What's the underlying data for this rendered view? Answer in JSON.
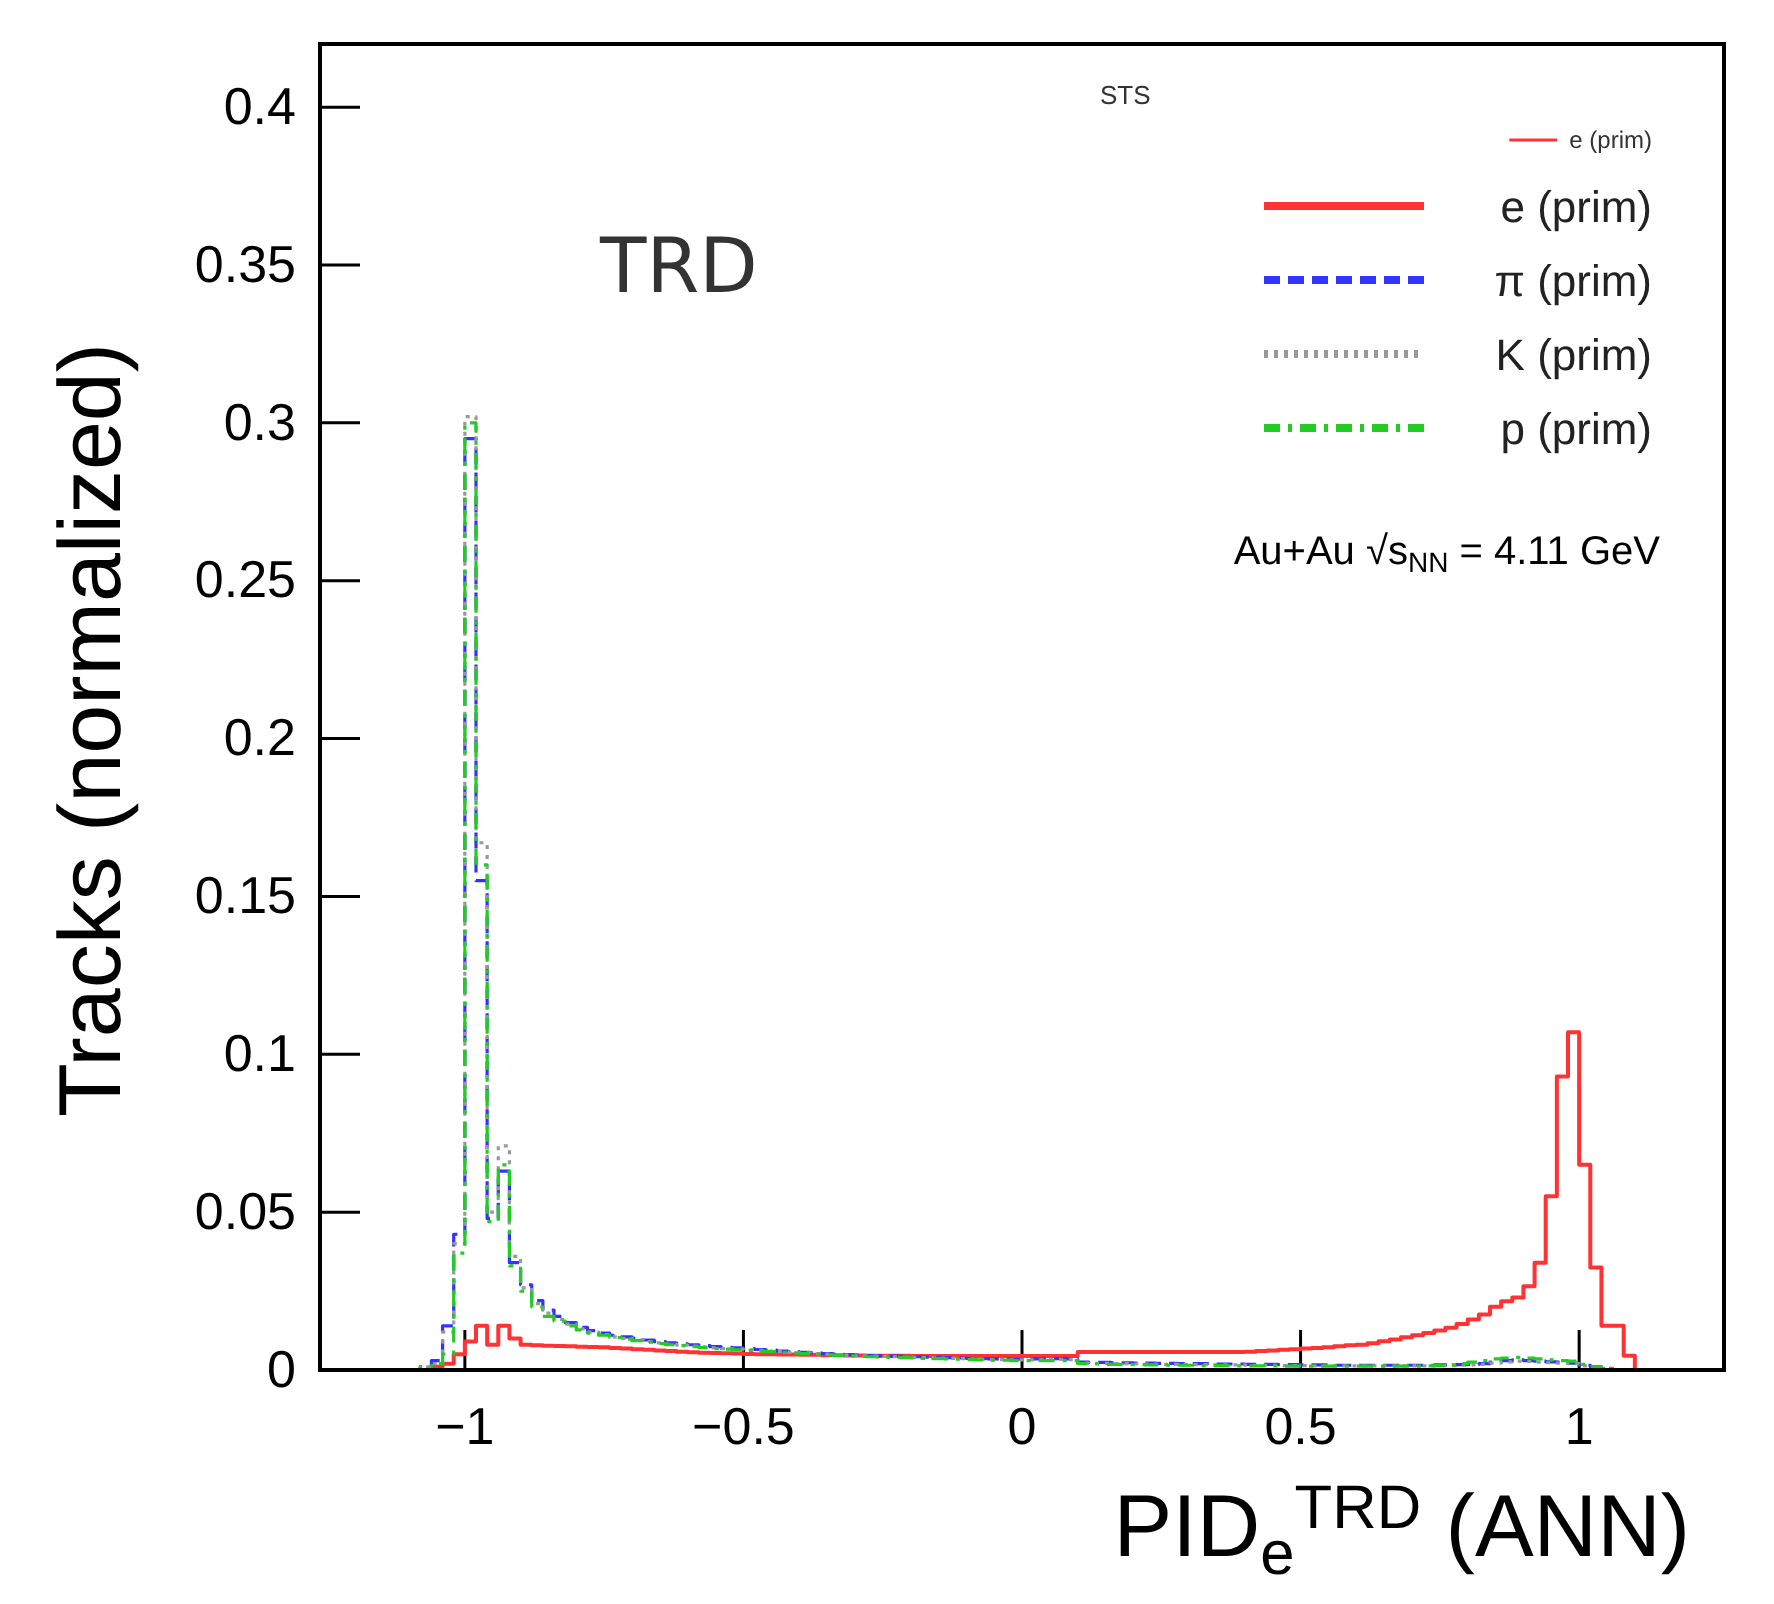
{
  "chart_data": {
    "type": "histogram",
    "xlabel": "PID$_{e}$$^{TRD}$ (ANN)",
    "ylabel": "Tracks (normalized)",
    "annotations": [
      "TRD",
      "STS",
      "e (prim)",
      "Au+Au √s$_{NN}$ = 4.11 GeV"
    ],
    "xlim": [
      -1.26,
      1.26
    ],
    "ylim": [
      0,
      0.42
    ],
    "xticks": [
      {
        "value": -1,
        "label": "−1"
      },
      {
        "value": -0.5,
        "label": "−0.5"
      },
      0,
      0.5,
      1
    ],
    "yticks": [
      0,
      0.05,
      0.1,
      0.15,
      0.2,
      0.25,
      0.3,
      0.35,
      0.4
    ],
    "legend": "top right",
    "grid": false,
    "bins": [
      -1.1,
      -1.08,
      -1.06,
      -1.04,
      -1.02,
      -1,
      -0.98,
      -0.96,
      -0.94,
      -0.92,
      -0.9,
      -0.88,
      -0.86,
      -0.84,
      -0.82,
      -0.8,
      -0.78,
      -0.76,
      -0.74,
      -0.72,
      -0.7,
      -0.68,
      -0.66,
      -0.64,
      -0.62,
      -0.6,
      -0.58,
      -0.56,
      -0.54,
      -0.52,
      -0.5,
      -0.48,
      -0.46,
      -0.44,
      -0.42,
      -0.4,
      -0.38,
      -0.36,
      -0.34,
      -0.32,
      -0.3,
      -0.28,
      -0.26,
      -0.24,
      -0.22,
      -0.2,
      -0.18,
      -0.16,
      -0.14,
      -0.12,
      -0.1,
      -0.08,
      -0.06,
      -0.04,
      -0.02,
      0,
      0.02,
      0.04,
      0.06,
      0.08,
      0.1,
      0.12,
      0.14,
      0.16,
      0.18,
      0.2,
      0.22,
      0.24,
      0.26,
      0.28,
      0.3,
      0.32,
      0.34,
      0.36,
      0.38,
      0.4,
      0.42,
      0.44,
      0.46,
      0.48,
      0.5,
      0.52,
      0.54,
      0.56,
      0.58,
      0.6,
      0.62,
      0.64,
      0.66,
      0.68,
      0.7,
      0.72,
      0.74,
      0.76,
      0.78,
      0.8,
      0.82,
      0.84,
      0.86,
      0.88,
      0.9,
      0.92,
      0.94,
      0.96,
      0.98,
      1,
      1.02,
      1.04,
      1.06,
      1.08,
      1.1
    ],
    "series": [
      {
        "name": "e (prim)",
        "color": "#ff3333",
        "line_style": "solid",
        "values": [
          0,
          0,
          0.001,
          0.002,
          0.005,
          0.009,
          0.014,
          0.008,
          0.014,
          0.01,
          0.008,
          0.0078,
          0.0077,
          0.0076,
          0.0075,
          0.0074,
          0.0073,
          0.0072,
          0.007,
          0.0068,
          0.0066,
          0.0064,
          0.0062,
          0.006,
          0.0058,
          0.0056,
          0.0055,
          0.0054,
          0.0053,
          0.0052,
          0.0051,
          0.005,
          0.005,
          0.0049,
          0.0049,
          0.0048,
          0.0048,
          0.0047,
          0.0047,
          0.0046,
          0.0046,
          0.0045,
          0.0045,
          0.0045,
          0.0045,
          0.0044,
          0.0044,
          0.0044,
          0.0044,
          0.0044,
          0.0044,
          0.0044,
          0.0044,
          0.0044,
          0.0044,
          0.0044,
          0.0044,
          0.0044,
          0.0044,
          0.0044,
          0.0057,
          0.0057,
          0.0057,
          0.0057,
          0.0057,
          0.0057,
          0.0057,
          0.0057,
          0.0057,
          0.0057,
          0.0057,
          0.0057,
          0.0057,
          0.0057,
          0.0057,
          0.0058,
          0.006,
          0.0062,
          0.0064,
          0.0066,
          0.0068,
          0.007,
          0.0072,
          0.0075,
          0.0078,
          0.008,
          0.0085,
          0.0091,
          0.0097,
          0.0104,
          0.011,
          0.0117,
          0.0125,
          0.0134,
          0.0146,
          0.016,
          0.0176,
          0.02,
          0.0218,
          0.023,
          0.0265,
          0.034,
          0.055,
          0.093,
          0.107,
          0.065,
          0.0325,
          0.014,
          0.014,
          0.0045
        ]
      },
      {
        "name": "π (prim)",
        "color": "#3333ff",
        "line_style": "dashed",
        "values": [
          0,
          0.001,
          0.003,
          0.014,
          0.043,
          0.295,
          0.155,
          0.048,
          0.063,
          0.034,
          0.027,
          0.022,
          0.019,
          0.017,
          0.015,
          0.0135,
          0.0125,
          0.0117,
          0.011,
          0.0105,
          0.01,
          0.0095,
          0.009,
          0.0086,
          0.0083,
          0.008,
          0.0077,
          0.0074,
          0.0072,
          0.007,
          0.0068,
          0.0065,
          0.0063,
          0.006,
          0.0058,
          0.0056,
          0.0054,
          0.0052,
          0.005,
          0.0049,
          0.0047,
          0.0046,
          0.0045,
          0.0044,
          0.0043,
          0.0042,
          0.0041,
          0.004,
          0.0039,
          0.0038,
          0.0037,
          0.0036,
          0.0035,
          0.0035,
          0.0034,
          0.0034,
          0.0035,
          0.0036,
          0.0036,
          0.0035,
          0.0025,
          0.0024,
          0.0024,
          0.0023,
          0.0023,
          0.0022,
          0.0022,
          0.0021,
          0.0021,
          0.002,
          0.002,
          0.002,
          0.0019,
          0.0019,
          0.0019,
          0.0018,
          0.0018,
          0.0018,
          0.0017,
          0.0017,
          0.0016,
          0.0016,
          0.0016,
          0.0015,
          0.0015,
          0.0015,
          0.0015,
          0.0015,
          0.0015,
          0.0015,
          0.0015,
          0.0015,
          0.0016,
          0.0016,
          0.0017,
          0.0018,
          0.002,
          0.0025,
          0.003,
          0.0032,
          0.003,
          0.0028,
          0.0026,
          0.0025,
          0.0022,
          0.0015,
          0.001,
          0.0005,
          0,
          0
        ]
      },
      {
        "name": "K (prim)",
        "color": "#999999",
        "line_style": "dotted",
        "values": [
          0,
          0.001,
          0.002,
          0.012,
          0.04,
          0.302,
          0.167,
          0.05,
          0.071,
          0.036,
          0.026,
          0.021,
          0.018,
          0.016,
          0.0145,
          0.013,
          0.012,
          0.0112,
          0.0105,
          0.01,
          0.0095,
          0.009,
          0.0086,
          0.0082,
          0.0079,
          0.0076,
          0.0073,
          0.007,
          0.0068,
          0.0066,
          0.0064,
          0.0062,
          0.006,
          0.0058,
          0.0056,
          0.0054,
          0.0052,
          0.005,
          0.0048,
          0.0047,
          0.0045,
          0.0044,
          0.0043,
          0.0042,
          0.0041,
          0.004,
          0.0039,
          0.0038,
          0.0037,
          0.0036,
          0.0035,
          0.0034,
          0.0033,
          0.0033,
          0.0032,
          0.0032,
          0.0033,
          0.0034,
          0.0034,
          0.0033,
          0.0022,
          0.0021,
          0.0021,
          0.002,
          0.002,
          0.0019,
          0.0019,
          0.0018,
          0.0018,
          0.0017,
          0.0017,
          0.0017,
          0.0016,
          0.0016,
          0.0016,
          0.0015,
          0.0015,
          0.0015,
          0.0014,
          0.0014,
          0.0014,
          0.0013,
          0.0013,
          0.0013,
          0.0013,
          0.0013,
          0.0013,
          0.0013,
          0.0013,
          0.0013,
          0.0013,
          0.0013,
          0.0014,
          0.0014,
          0.0015,
          0.0016,
          0.0018,
          0.0022,
          0.0026,
          0.0028,
          0.0027,
          0.0025,
          0.0023,
          0.0022,
          0.002,
          0.0013,
          0.0008,
          0.0004,
          0,
          0
        ]
      },
      {
        "name": "p (prim)",
        "color": "#22cc22",
        "line_style": "dashdot",
        "values": [
          0,
          0.001,
          0.002,
          0.005,
          0.037,
          0.3,
          0.16,
          0.047,
          0.065,
          0.033,
          0.025,
          0.02,
          0.017,
          0.0155,
          0.014,
          0.0127,
          0.0117,
          0.011,
          0.0103,
          0.0098,
          0.0093,
          0.0088,
          0.0084,
          0.008,
          0.0077,
          0.0074,
          0.0071,
          0.0068,
          0.0066,
          0.0064,
          0.0062,
          0.006,
          0.0058,
          0.0056,
          0.0054,
          0.0052,
          0.005,
          0.0048,
          0.0046,
          0.0045,
          0.0043,
          0.0042,
          0.0041,
          0.004,
          0.0039,
          0.0038,
          0.0037,
          0.0036,
          0.0035,
          0.0034,
          0.0033,
          0.0032,
          0.0031,
          0.0031,
          0.003,
          0.003,
          0.003,
          0.003,
          0.003,
          0.003,
          0.002,
          0.0019,
          0.0018,
          0.0018,
          0.0017,
          0.0017,
          0.0016,
          0.0016,
          0.0015,
          0.0015,
          0.0015,
          0.0014,
          0.0014,
          0.0014,
          0.0013,
          0.0013,
          0.0013,
          0.0013,
          0.0012,
          0.0012,
          0.0012,
          0.0012,
          0.0012,
          0.0012,
          0.0012,
          0.0012,
          0.0012,
          0.0012,
          0.0012,
          0.0012,
          0.0012,
          0.0013,
          0.0014,
          0.0016,
          0.002,
          0.0025,
          0.003,
          0.0035,
          0.0038,
          0.004,
          0.0038,
          0.0035,
          0.0032,
          0.003,
          0.0028,
          0.0018,
          0.001,
          0.0005,
          0,
          0
        ]
      }
    ]
  }
}
